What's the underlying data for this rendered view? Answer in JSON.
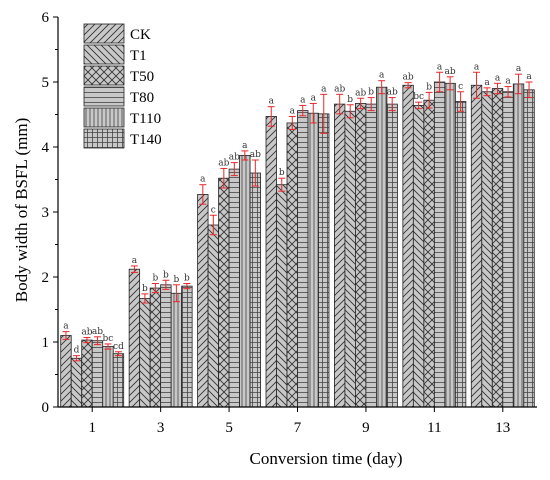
{
  "chart_data": {
    "type": "bar",
    "xlabel": "Conversion time (day)",
    "ylabel": "Body width of BSFL (mm)",
    "ylim": [
      0,
      6
    ],
    "yticks": [
      0,
      1,
      2,
      3,
      4,
      5,
      6
    ],
    "categories": [
      "1",
      "3",
      "5",
      "7",
      "9",
      "11",
      "13"
    ],
    "legend_position": "top-left",
    "bar_fill": "#c8c8c8",
    "error_bar_color": "#e8272a",
    "series": [
      {
        "name": "CK",
        "pattern": "diag-up",
        "values": [
          1.1,
          2.12,
          3.27,
          4.47,
          4.66,
          4.95,
          4.95
        ],
        "errors": [
          0.06,
          0.05,
          0.15,
          0.15,
          0.15,
          0.04,
          0.2
        ],
        "labels": [
          "a",
          "a",
          "a",
          "a",
          "ab",
          "ab",
          "a"
        ]
      },
      {
        "name": "T1",
        "pattern": "diag-down",
        "values": [
          0.75,
          1.67,
          2.8,
          3.42,
          4.55,
          4.64,
          4.85
        ],
        "errors": [
          0.04,
          0.07,
          0.15,
          0.1,
          0.1,
          0.05,
          0.06
        ],
        "labels": [
          "d",
          "b",
          "c",
          "b",
          "b",
          "bc",
          "a"
        ]
      },
      {
        "name": "T50",
        "pattern": "cross-diag",
        "values": [
          1.03,
          1.83,
          3.52,
          4.37,
          4.67,
          4.72,
          4.9
        ],
        "errors": [
          0.04,
          0.07,
          0.15,
          0.1,
          0.08,
          0.12,
          0.08
        ],
        "labels": [
          "ab",
          "b",
          "ab",
          "a",
          "ab",
          "b",
          "a"
        ]
      },
      {
        "name": "T80",
        "pattern": "horizontal",
        "values": [
          1.02,
          1.88,
          3.66,
          4.56,
          4.66,
          5.0,
          4.85
        ],
        "errors": [
          0.06,
          0.07,
          0.1,
          0.08,
          0.1,
          0.15,
          0.08
        ],
        "labels": [
          "ab",
          "b",
          "ab",
          "a",
          "b",
          "a",
          "a"
        ]
      },
      {
        "name": "T110",
        "pattern": "vertical",
        "values": [
          0.93,
          1.75,
          3.87,
          4.52,
          4.92,
          4.98,
          4.97
        ],
        "errors": [
          0.04,
          0.13,
          0.07,
          0.15,
          0.1,
          0.1,
          0.15
        ],
        "labels": [
          "bc",
          "b",
          "a",
          "a",
          "a",
          "ab",
          "a"
        ]
      },
      {
        "name": "T140",
        "pattern": "grid",
        "values": [
          0.82,
          1.86,
          3.6,
          4.51,
          4.66,
          4.7,
          4.88
        ],
        "errors": [
          0.03,
          0.04,
          0.2,
          0.3,
          0.1,
          0.15,
          0.12
        ],
        "labels": [
          "cd",
          "b",
          "ab",
          "a",
          "ab",
          "c",
          "a"
        ]
      }
    ]
  }
}
